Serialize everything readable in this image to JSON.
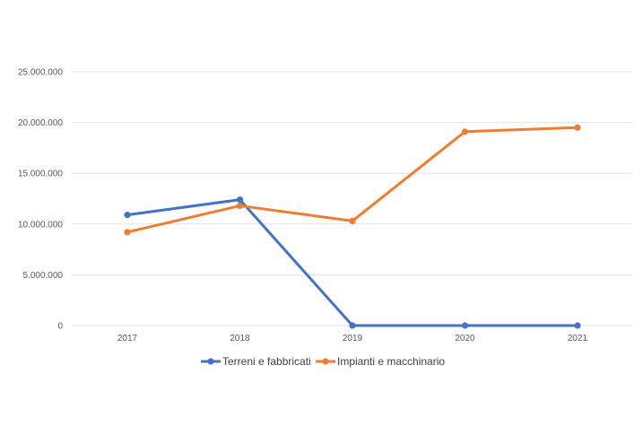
{
  "chart_data": {
    "type": "line",
    "title": "",
    "xlabel": "",
    "ylabel": "",
    "categories": [
      "2017",
      "2018",
      "2019",
      "2020",
      "2021"
    ],
    "y_ticks": [
      "0",
      "5.000.000",
      "10.000.000",
      "15.000.000",
      "20.000.000",
      "25.000.000"
    ],
    "ylim": [
      0,
      25000000
    ],
    "grid": true,
    "legend_position": "bottom",
    "series": [
      {
        "name": "Terreni e fabbricati",
        "color": "#4472c4",
        "values": [
          10900000,
          12400000,
          0,
          0,
          0
        ]
      },
      {
        "name": "Impianti e macchinario",
        "color": "#ed7d31",
        "values": [
          9200000,
          11800000,
          10300000,
          19100000,
          19500000
        ]
      }
    ]
  }
}
